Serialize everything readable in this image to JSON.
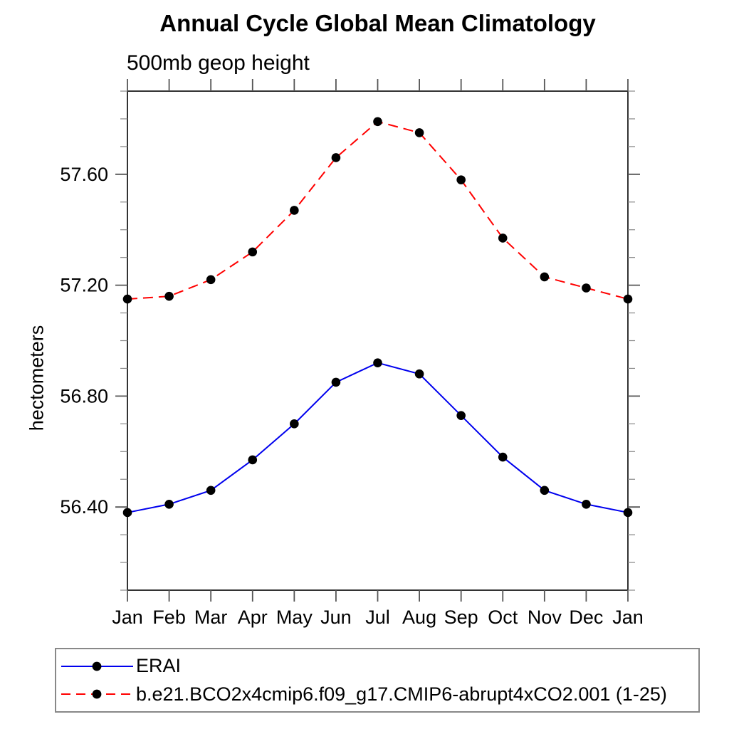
{
  "chart_data": {
    "type": "line",
    "title": "Annual Cycle Global Mean Climatology",
    "subtitle": "500mb geop height",
    "ylabel": "hectometers",
    "xlabel": "",
    "categories": [
      "Jan",
      "Feb",
      "Mar",
      "Apr",
      "May",
      "Jun",
      "Jul",
      "Aug",
      "Sep",
      "Oct",
      "Nov",
      "Dec",
      "Jan"
    ],
    "series": [
      {
        "name": "ERAI",
        "color": "#0000ee",
        "line_style": "solid",
        "marker": "black-dot",
        "values": [
          56.38,
          56.41,
          56.46,
          56.57,
          56.7,
          56.85,
          56.92,
          56.88,
          56.73,
          56.58,
          56.46,
          56.41,
          56.38
        ]
      },
      {
        "name": "b.e21.BCO2x4cmip6.f09_g17.CMIP6-abrupt4xCO2.001 (1-25)",
        "color": "#ff0000",
        "line_style": "dashed",
        "marker": "black-dot",
        "values": [
          57.15,
          57.16,
          57.22,
          57.32,
          57.47,
          57.66,
          57.79,
          57.75,
          57.58,
          57.37,
          57.23,
          57.19,
          57.15
        ]
      }
    ],
    "ylim": [
      56.1,
      57.9
    ],
    "y_major_ticks": [
      56.4,
      56.8,
      57.2,
      57.6
    ],
    "y_tick_labels": [
      "56.40",
      "56.80",
      "57.20",
      "57.60"
    ],
    "y_minor_step": 0.1,
    "grid": false,
    "legend_position": "bottom-left",
    "colors": {
      "axis": "#333333",
      "major_tick": "#555555",
      "minor_tick": "#888888",
      "marker": "#000000",
      "text": "#000000",
      "legend_border": "#888888"
    }
  }
}
